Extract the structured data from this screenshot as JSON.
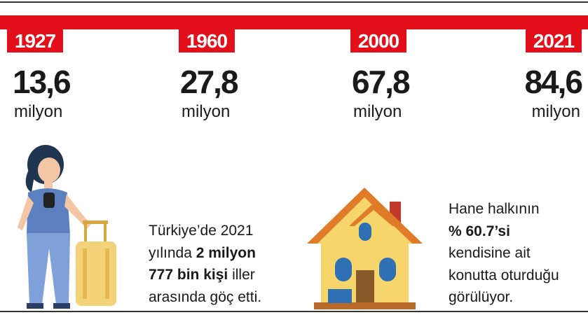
{
  "timeline": [
    {
      "year": "1927",
      "value": "13,6",
      "unit": "milyon"
    },
    {
      "year": "1960",
      "value": "27,8",
      "unit": "milyon"
    },
    {
      "year": "2000",
      "value": "67,8",
      "unit": "milyon"
    },
    {
      "year": "2021",
      "value": "84,6",
      "unit": "milyon"
    }
  ],
  "migration_note": {
    "lines": [
      [
        {
          "text": "Türkiye’de 2021",
          "bold": false
        }
      ],
      [
        {
          "text": "yılında ",
          "bold": false
        },
        {
          "text": "2 milyon",
          "bold": true
        }
      ],
      [
        {
          "text": "777 bin kişi",
          "bold": true
        },
        {
          "text": " iller",
          "bold": false
        }
      ],
      [
        {
          "text": "arasında göç etti.",
          "bold": false
        }
      ]
    ]
  },
  "housing_note": {
    "lines": [
      [
        {
          "text": "Hane halkının",
          "bold": false
        }
      ],
      [
        {
          "text": "% 60.7’si",
          "bold": true
        }
      ],
      [
        {
          "text": "kendisine ait",
          "bold": false
        }
      ],
      [
        {
          "text": "konutta oturduğu",
          "bold": false
        }
      ],
      [
        {
          "text": "görülüyor.",
          "bold": false
        }
      ]
    ]
  }
}
